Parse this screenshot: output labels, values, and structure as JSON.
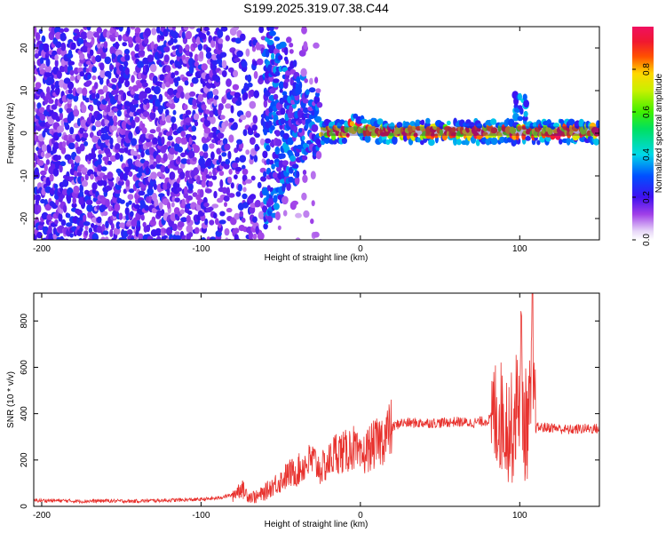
{
  "title": "S199.2025.319.07.38.C44",
  "chart_data": [
    {
      "type": "heatmap",
      "name": "spectrogram",
      "xlabel": "Height of straight line (km)",
      "ylabel": "Frequency (Hz)",
      "xlim": [
        -205,
        150
      ],
      "ylim": [
        -25,
        25
      ],
      "xticks": [
        -200,
        -100,
        0,
        100
      ],
      "xtick_labels": [
        "-200",
        "-100",
        "0",
        "100"
      ],
      "yticks": [
        -20,
        -10,
        0,
        10,
        20
      ],
      "ytick_labels": [
        "-20",
        "-10",
        "0",
        "10",
        "20"
      ],
      "colorbar": {
        "label": "Normalized spectral amplitude",
        "range": [
          0,
          1
        ],
        "ticks": [
          0.0,
          0.2,
          0.4,
          0.6,
          0.8
        ],
        "tick_labels": [
          "0.0",
          "0.2",
          "0.4",
          "0.6",
          "0.8"
        ]
      },
      "features": [
        {
          "x_from": -205,
          "x_to": -60,
          "description": "broadband low-amplitude noise",
          "amplitude": 0.15
        },
        {
          "x_from": -90,
          "x_to": -30,
          "description": "converging energy band",
          "amplitude": 0.3
        },
        {
          "x_from": -30,
          "x_to": 150,
          "description": "narrow band near 0-2 Hz",
          "amplitude": 0.9
        },
        {
          "x_at": 100,
          "description": "spike up to ~8 Hz",
          "amplitude": 0.4
        }
      ]
    },
    {
      "type": "line",
      "name": "snr",
      "xlabel": "Height of straight line (km)",
      "ylabel": "SNR (10 * v/v)",
      "xlim": [
        -205,
        150
      ],
      "ylim": [
        0,
        920
      ],
      "xticks": [
        -200,
        -100,
        0,
        100
      ],
      "xtick_labels": [
        "-200",
        "-100",
        "0",
        "100"
      ],
      "yticks": [
        0,
        200,
        400,
        600,
        800
      ],
      "ytick_labels": [
        "0",
        "200",
        "400",
        "600",
        "800"
      ],
      "color": "#e8322e",
      "series": [
        {
          "name": "SNR",
          "x": [
            -205,
            -190,
            -175,
            -160,
            -145,
            -130,
            -115,
            -100,
            -90,
            -80,
            -75,
            -70,
            -65,
            -60,
            -55,
            -50,
            -45,
            -40,
            -35,
            -30,
            -25,
            -20,
            -15,
            -10,
            -5,
            0,
            5,
            10,
            15,
            20,
            25,
            30,
            40,
            50,
            60,
            70,
            80,
            85,
            90,
            95,
            100,
            103,
            106,
            108,
            110,
            115,
            120,
            130,
            140,
            150
          ],
          "y": [
            25,
            25,
            22,
            24,
            22,
            25,
            27,
            30,
            35,
            50,
            80,
            45,
            40,
            60,
            90,
            110,
            140,
            150,
            180,
            200,
            160,
            190,
            240,
            230,
            260,
            200,
            250,
            270,
            300,
            340,
            360,
            360,
            360,
            360,
            365,
            360,
            370,
            400,
            380,
            330,
            500,
            350,
            370,
            600,
            340,
            340,
            340,
            330,
            335,
            335
          ]
        }
      ]
    }
  ]
}
